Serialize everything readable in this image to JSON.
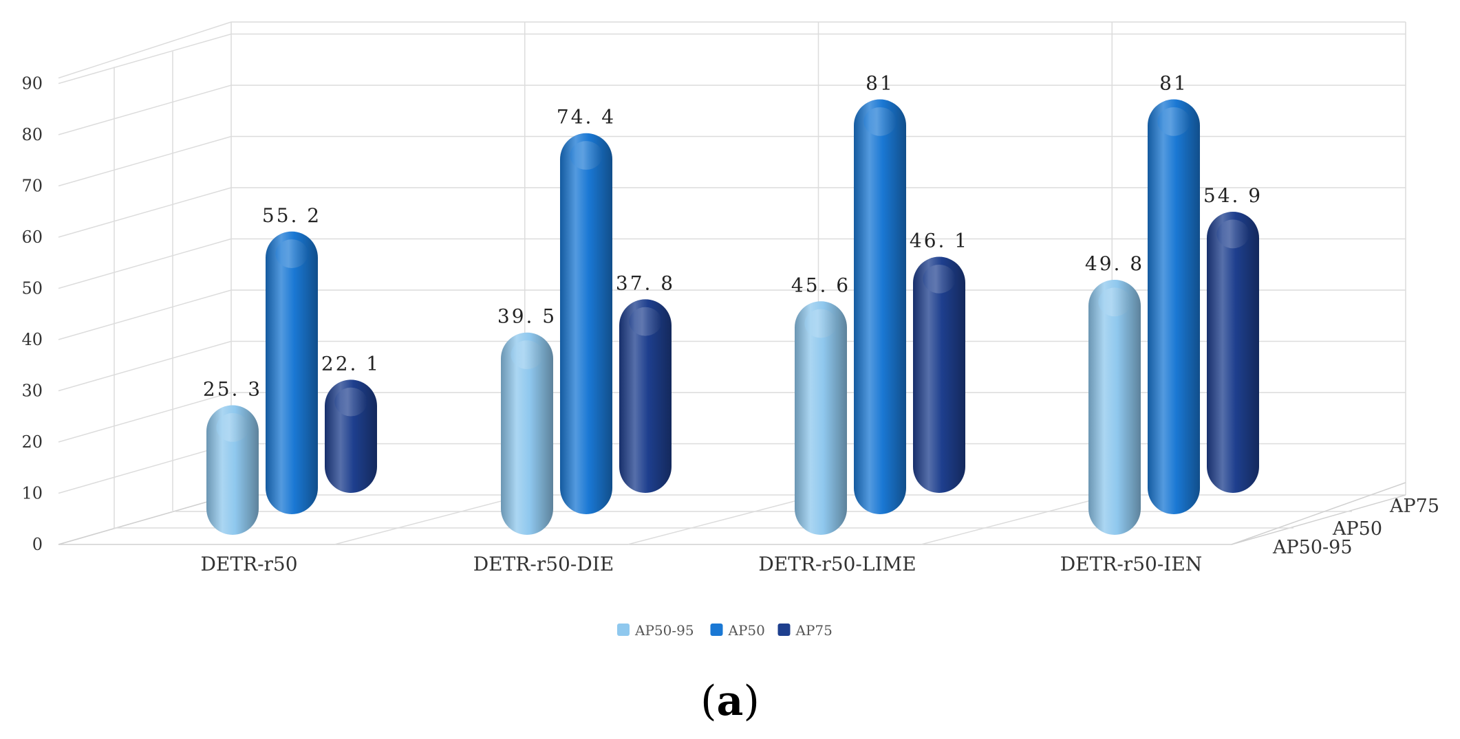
{
  "chart_data": {
    "type": "bar",
    "style": "3d-cylinder",
    "categories": [
      "DETR-r50",
      "DETR-r50-DIE",
      "DETR-r50-LIME",
      "DETR-r50-IEN"
    ],
    "series": [
      {
        "name": "AP50-95",
        "values": [
          25.3,
          39.5,
          45.6,
          49.8
        ],
        "labels": [
          "25. 3",
          "39. 5",
          "45. 6",
          "49. 8"
        ],
        "color": "#8fc8ee"
      },
      {
        "name": "AP50",
        "values": [
          55.2,
          74.4,
          81,
          81
        ],
        "labels": [
          "55. 2",
          "74. 4",
          "81",
          "81"
        ],
        "color": "#1a78d4"
      },
      {
        "name": "AP75",
        "values": [
          22.1,
          37.8,
          46.1,
          54.9
        ],
        "labels": [
          "22. 1",
          "37. 8",
          "46. 1",
          "54. 9"
        ],
        "color": "#1e3f8e"
      }
    ],
    "yticks": [
      "0",
      "10",
      "20",
      "30",
      "40",
      "50",
      "60",
      "70",
      "80",
      "90"
    ],
    "ylim": [
      0,
      90
    ],
    "depth_axis_labels": [
      "AP50-95",
      "AP50",
      "AP75"
    ],
    "legend_position": "bottom",
    "grid": true
  },
  "caption": {
    "open": "(",
    "letter": "a",
    "close": ")"
  }
}
